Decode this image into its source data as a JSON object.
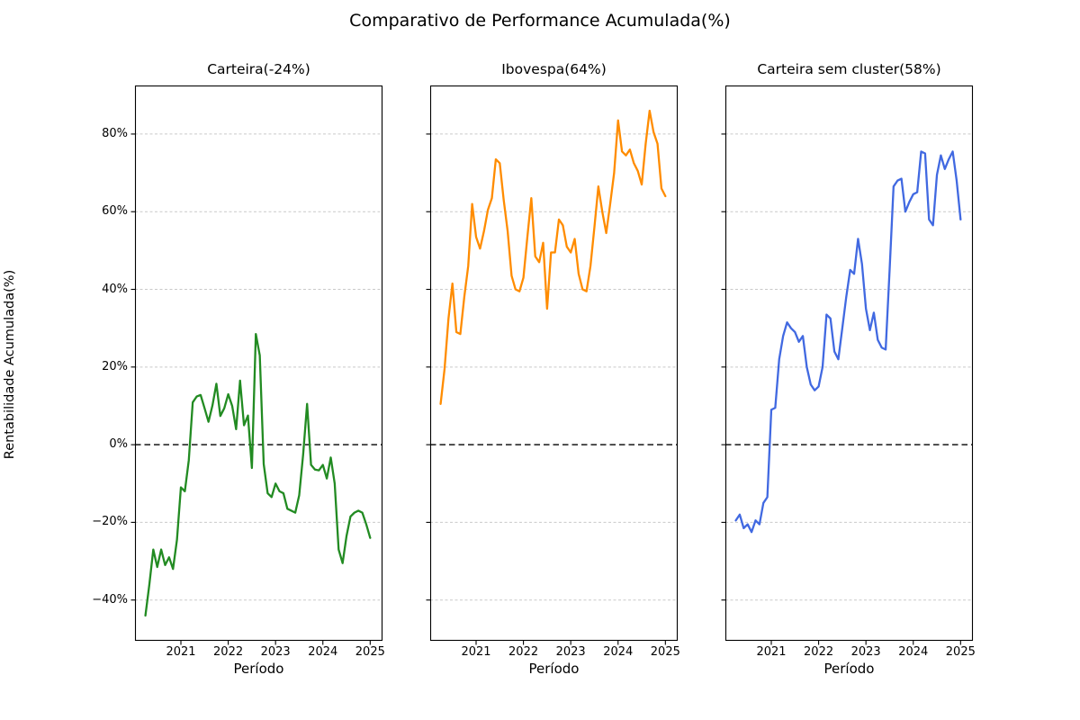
{
  "figure": {
    "suptitle": "Comparativo de Performance Acumulada(%)",
    "xlabel": "Período",
    "ylabel": "Rentabilidade Acumulada(%)",
    "background": "#ffffff"
  },
  "axes": {
    "xlim": [
      2020.03,
      2025.26
    ],
    "ylim": [
      -50.5,
      92.5
    ],
    "grid": true,
    "grid_color": "#c9c9c9",
    "frame_color": "#000000",
    "zero_line": {
      "value": 0,
      "color": "#000000",
      "style": "dashed"
    },
    "yticks": [
      {
        "label": "80%",
        "value": 80
      },
      {
        "label": "60%",
        "value": 60
      },
      {
        "label": "40%",
        "value": 40
      },
      {
        "label": "20%",
        "value": 20
      },
      {
        "label": "0%",
        "value": 0
      },
      {
        "label": "−20%",
        "value": -20
      },
      {
        "label": "−40%",
        "value": -40
      }
    ],
    "xticks": [
      {
        "label": "2021",
        "value": 2021
      },
      {
        "label": "2022",
        "value": 2022
      },
      {
        "label": "2023",
        "value": 2023
      },
      {
        "label": "2024",
        "value": 2024
      },
      {
        "label": "2025",
        "value": 2025
      }
    ]
  },
  "chart_data": [
    {
      "type": "line",
      "title": "Carteira(-24%)",
      "series_name": "Carteira",
      "final_value_pct": -24,
      "color": "#228B22",
      "x": [
        "2020-04",
        "2020-05",
        "2020-06",
        "2020-07",
        "2020-08",
        "2020-09",
        "2020-10",
        "2020-11",
        "2020-12",
        "2021-01",
        "2021-02",
        "2021-03",
        "2021-04",
        "2021-05",
        "2021-06",
        "2021-07",
        "2021-08",
        "2021-09",
        "2021-10",
        "2021-11",
        "2021-12",
        "2022-01",
        "2022-02",
        "2022-03",
        "2022-04",
        "2022-05",
        "2022-06",
        "2022-07",
        "2022-08",
        "2022-09",
        "2022-10",
        "2022-11",
        "2022-12",
        "2023-01",
        "2023-02",
        "2023-03",
        "2023-04",
        "2023-05",
        "2023-06",
        "2023-07",
        "2023-08",
        "2023-09",
        "2023-10",
        "2023-11",
        "2023-12",
        "2024-01",
        "2024-02",
        "2024-03",
        "2024-04",
        "2024-05",
        "2024-06",
        "2024-07",
        "2024-08",
        "2024-09",
        "2024-10",
        "2024-11",
        "2024-12",
        "2025-01"
      ],
      "values": [
        -44,
        -36,
        -27,
        -31.5,
        -27,
        -31,
        -29,
        -32,
        -24.5,
        -11,
        -12,
        -4,
        10.9,
        12.4,
        12.8,
        9.4,
        5.9,
        10.1,
        15.7,
        7.4,
        9.4,
        13,
        10,
        4,
        16.5,
        5,
        7.5,
        -6,
        28.5,
        23,
        -5,
        -12.5,
        -13.5,
        -10,
        -12,
        -12.5,
        -16.5,
        -17,
        -17.5,
        -13,
        -2.5,
        10.5,
        -5.2,
        -6.4,
        -6.6,
        -5.2,
        -8.7,
        -3.3,
        -10,
        -27,
        -30.5,
        -23.5,
        -18.5,
        -17.5,
        -17,
        -17.5,
        -20.5,
        -24
      ]
    },
    {
      "type": "line",
      "title": "Ibovespa(64%)",
      "series_name": "Ibovespa",
      "final_value_pct": 64,
      "color": "#FF8C00",
      "x": [
        "2020-04",
        "2020-05",
        "2020-06",
        "2020-07",
        "2020-08",
        "2020-09",
        "2020-10",
        "2020-11",
        "2020-12",
        "2021-01",
        "2021-02",
        "2021-03",
        "2021-04",
        "2021-05",
        "2021-06",
        "2021-07",
        "2021-08",
        "2021-09",
        "2021-10",
        "2021-11",
        "2021-12",
        "2022-01",
        "2022-02",
        "2022-03",
        "2022-04",
        "2022-05",
        "2022-06",
        "2022-07",
        "2022-08",
        "2022-09",
        "2022-10",
        "2022-11",
        "2022-12",
        "2023-01",
        "2023-02",
        "2023-03",
        "2023-04",
        "2023-05",
        "2023-06",
        "2023-07",
        "2023-08",
        "2023-09",
        "2023-10",
        "2023-11",
        "2023-12",
        "2024-01",
        "2024-02",
        "2024-03",
        "2024-04",
        "2024-05",
        "2024-06",
        "2024-07",
        "2024-08",
        "2024-09",
        "2024-10",
        "2024-11",
        "2024-12",
        "2025-01"
      ],
      "values": [
        10.5,
        19.5,
        32.5,
        41.5,
        29,
        28.5,
        38,
        46,
        62,
        53.5,
        50.5,
        55,
        60.5,
        63.5,
        73.5,
        72.5,
        63,
        55,
        43.5,
        40,
        39.5,
        43,
        53.5,
        63.5,
        48.5,
        47,
        52,
        35,
        49.5,
        49.5,
        58,
        56.5,
        51,
        49.5,
        53,
        44,
        40,
        39.5,
        46,
        56,
        66.5,
        60,
        54.5,
        62,
        70,
        83.5,
        75.5,
        74.5,
        76,
        72.5,
        70.5,
        67,
        77.5,
        86,
        80.5,
        77.5,
        66,
        64
      ]
    },
    {
      "type": "line",
      "title": "Carteira sem cluster(58%)",
      "series_name": "Carteira sem cluster",
      "final_value_pct": 58,
      "color": "#4169E1",
      "x": [
        "2020-04",
        "2020-05",
        "2020-06",
        "2020-07",
        "2020-08",
        "2020-09",
        "2020-10",
        "2020-11",
        "2020-12",
        "2021-01",
        "2021-02",
        "2021-03",
        "2021-04",
        "2021-05",
        "2021-06",
        "2021-07",
        "2021-08",
        "2021-09",
        "2021-10",
        "2021-11",
        "2021-12",
        "2022-01",
        "2022-02",
        "2022-03",
        "2022-04",
        "2022-05",
        "2022-06",
        "2022-07",
        "2022-08",
        "2022-09",
        "2022-10",
        "2022-11",
        "2022-12",
        "2023-01",
        "2023-02",
        "2023-03",
        "2023-04",
        "2023-05",
        "2023-06",
        "2023-07",
        "2023-08",
        "2023-09",
        "2023-10",
        "2023-11",
        "2023-12",
        "2024-01",
        "2024-02",
        "2024-03",
        "2024-04",
        "2024-05",
        "2024-06",
        "2024-07",
        "2024-08",
        "2024-09",
        "2024-10",
        "2024-11",
        "2024-12",
        "2025-01"
      ],
      "values": [
        -19.5,
        -18,
        -21.5,
        -20.5,
        -22.5,
        -19.5,
        -20.5,
        -15,
        -13.5,
        9,
        9.5,
        22,
        28,
        31.5,
        30,
        29,
        26.5,
        28,
        20,
        15.5,
        14,
        15,
        20,
        33.5,
        32.5,
        24,
        22,
        30,
        38,
        45,
        44,
        53,
        46.5,
        35,
        29.5,
        34,
        27,
        25,
        24.5,
        45,
        66.5,
        68,
        68.5,
        60,
        62.5,
        64.5,
        65,
        75.5,
        75,
        58,
        56.5,
        69.5,
        74.5,
        71,
        73.5,
        75.5,
        68,
        58
      ]
    }
  ],
  "layout": {
    "subplot_lefts": [
      150,
      478,
      806
    ],
    "subplot_top": 95,
    "subplot_width": 275,
    "subplot_height": 617
  }
}
